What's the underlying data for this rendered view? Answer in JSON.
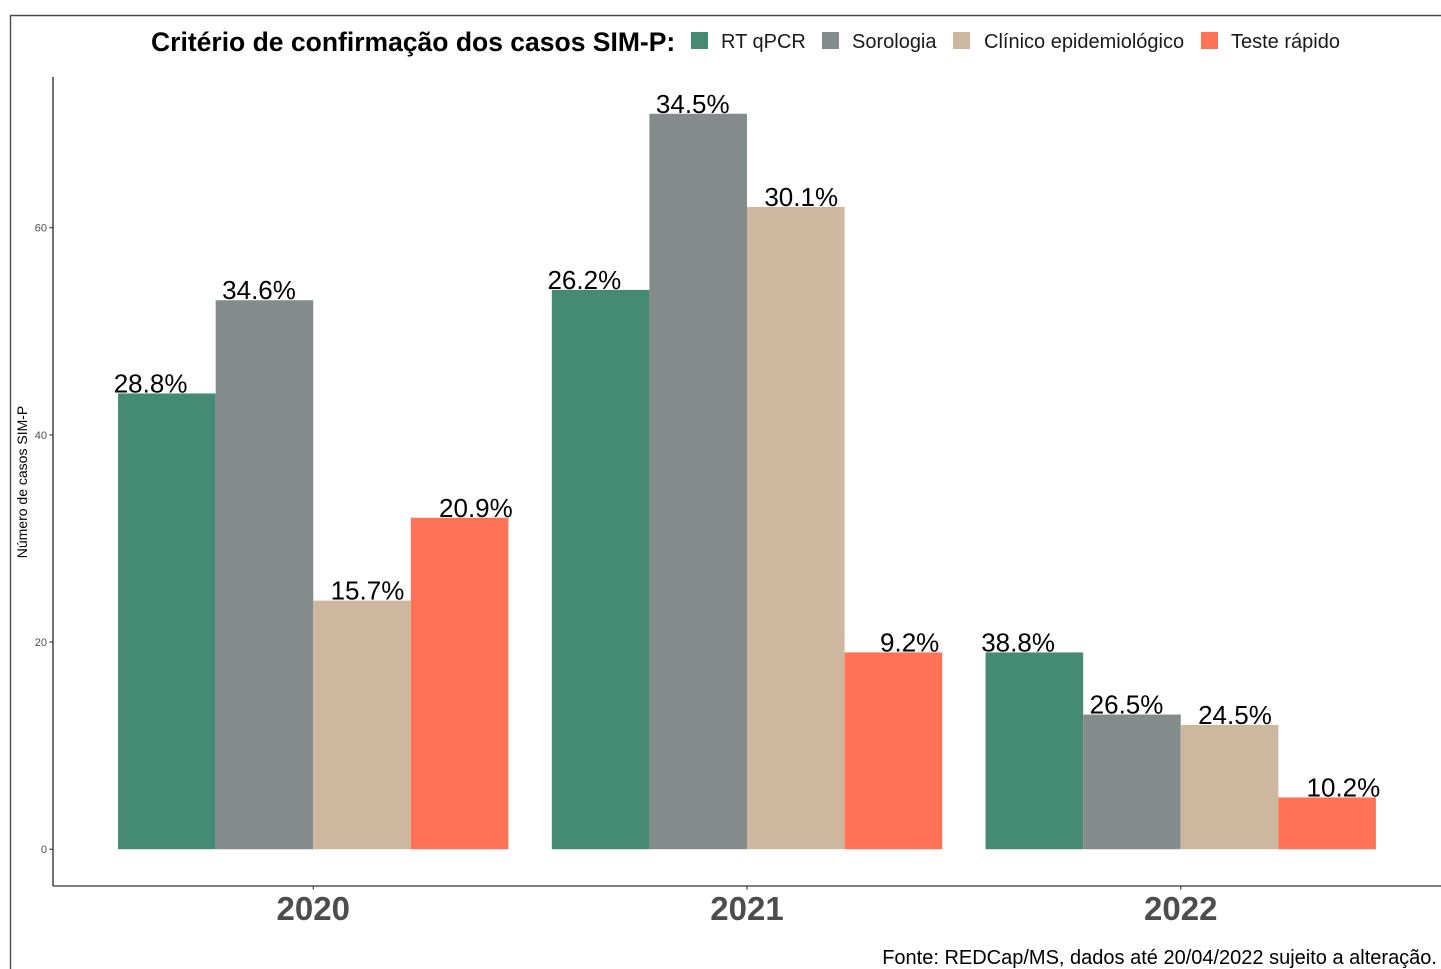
{
  "chart_data": {
    "type": "bar",
    "title": "Critério de confirmação dos casos SIM-P:",
    "xlabel": "",
    "ylabel": "Número de casos SIM-P",
    "categories": [
      "2020",
      "2021",
      "2022"
    ],
    "series": [
      {
        "name": "RT qPCR",
        "color": "#458B74",
        "values": [
          44,
          54,
          19
        ],
        "labels": [
          "28.8%",
          "26.2%",
          "38.8%"
        ]
      },
      {
        "name": "Sorologia",
        "color": "#838B8B",
        "values": [
          53,
          71,
          13
        ],
        "labels": [
          "34.6%",
          "34.5%",
          "26.5%"
        ]
      },
      {
        "name": "Clínico epidemiológico",
        "color": "#CDB79E",
        "values": [
          24,
          62,
          12
        ],
        "labels": [
          "15.7%",
          "30.1%",
          "24.5%"
        ]
      },
      {
        "name": "Teste rápido",
        "color": "#FF7256",
        "values": [
          32,
          19,
          5
        ],
        "labels": [
          "20.9%",
          "9.2%",
          "10.2%"
        ]
      }
    ],
    "yticks": [
      0,
      20,
      40,
      60
    ],
    "ylim": [
      -3.55,
      74.55
    ],
    "grid": false,
    "legend_position": "top",
    "caption": "Fonte: REDCap/MS, dados até 20/04/2022 sujeito a alteração."
  }
}
